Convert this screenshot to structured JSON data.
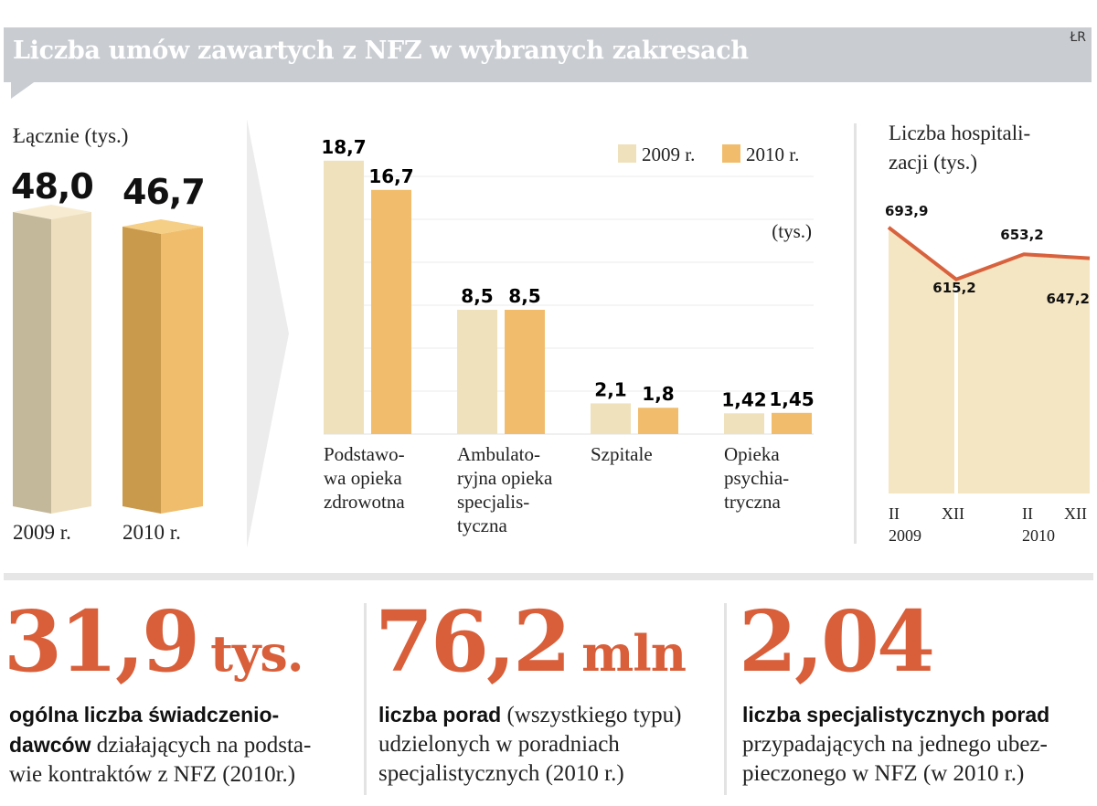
{
  "header": {
    "title": "Liczba umów zawartych z NFZ w wybranych zakresach",
    "credit": "ŁR"
  },
  "total": {
    "label": "Łącznie (tys.)",
    "y2009": "48,0",
    "y2010": "46,7",
    "x2009": "2009 r.",
    "x2010": "2010 r."
  },
  "legend": {
    "a": "2009 r.",
    "b": "2010 r.",
    "unit": "(tys.)"
  },
  "colors": {
    "c2009": "#f0e1bd",
    "c2010": "#f1bd6c",
    "accent": "#d95f3a",
    "line": "#d8623e",
    "area": "#f5e6c3"
  },
  "chart_data": [
    {
      "type": "bar",
      "title": "Łącznie (tys.)",
      "categories": [
        "2009 r.",
        "2010 r."
      ],
      "values": [
        48.0,
        46.7
      ],
      "labels": [
        "48,0",
        "46,7"
      ]
    },
    {
      "type": "bar",
      "ylabel": "(tys.)",
      "ylim": [
        0,
        20
      ],
      "categories": [
        [
          "Podstawo-",
          "wa opieka",
          "zdrowotna"
        ],
        [
          "Ambulato-",
          "ryjna opieka",
          "specjalis-",
          "tyczna"
        ],
        [
          "Szpitale"
        ],
        [
          "Opieka",
          "psychia-",
          "tryczna"
        ]
      ],
      "series": [
        {
          "name": "2009 r.",
          "values": [
            18.7,
            8.5,
            2.1,
            1.42
          ],
          "labels": [
            "18,7",
            "8,5",
            "2,1",
            "1,42"
          ]
        },
        {
          "name": "2010 r.",
          "values": [
            16.7,
            8.5,
            1.8,
            1.45
          ],
          "labels": [
            "16,7",
            "8,5",
            "1,8",
            "1,45"
          ]
        }
      ]
    },
    {
      "type": "area",
      "title": [
        "Liczba hospitali-",
        "zacji (tys.)"
      ],
      "x": [
        "II 2009",
        "XII",
        "II 2010",
        "XII"
      ],
      "x_ticks": [
        [
          "II",
          "2009"
        ],
        [
          "XII",
          ""
        ],
        [
          "II",
          "2010"
        ],
        [
          "XII",
          ""
        ]
      ],
      "values": [
        693.9,
        615.2,
        653.2,
        647.2
      ],
      "labels": [
        "693,9",
        "615,2",
        "653,2",
        "647,2"
      ]
    }
  ],
  "stats": [
    {
      "big": "31,9",
      "unit": "tys.",
      "bold": "ogólna liczba świadczenio-\ndawców",
      "rest": " działających na podsta-\nwie kontraktów z NFZ (2010r.)"
    },
    {
      "big": "76,2",
      "unit": "mln",
      "bold": "liczba porad",
      "rest": " (wszystkiego typu)\nudzielonych w poradniach\nspecjalistycznych (2010 r.)"
    },
    {
      "big": "2,04",
      "unit": "",
      "bold": "liczba specjalistycznych porad",
      "rest": "\nprzypadających na jednego ubez-\npieczonego w NFZ (w 2010 r.)"
    }
  ]
}
